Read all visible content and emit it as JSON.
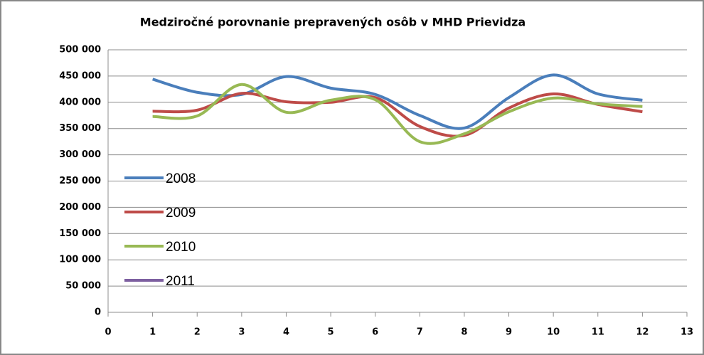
{
  "chart_data": {
    "type": "line",
    "title": "Medziročné porovnanie prepravených osôb v MHD Prievidza",
    "x": [
      1,
      2,
      3,
      4,
      5,
      6,
      7,
      8,
      9,
      10,
      11,
      12
    ],
    "series": [
      {
        "name": "2008",
        "color": "#4a7ebb",
        "values": [
          444000,
          419000,
          415000,
          449000,
          427000,
          415000,
          375000,
          351000,
          409000,
          452000,
          416000,
          404000
        ]
      },
      {
        "name": "2009",
        "color": "#be4b48",
        "values": [
          383000,
          385000,
          417000,
          401000,
          400000,
          409000,
          354000,
          337000,
          389000,
          416000,
          396000,
          382000
        ]
      },
      {
        "name": "2010",
        "color": "#98b954",
        "values": [
          373000,
          374000,
          434000,
          381000,
          404000,
          405000,
          325000,
          340000,
          382000,
          408000,
          397000,
          392000
        ]
      },
      {
        "name": "2011",
        "color": "#7d5fa0",
        "values": [
          null,
          null,
          null,
          null,
          null,
          null,
          null,
          null,
          null,
          null,
          null,
          null
        ]
      }
    ],
    "xlim": [
      0,
      13
    ],
    "xticks": [
      0,
      1,
      2,
      3,
      4,
      5,
      6,
      7,
      8,
      9,
      10,
      11,
      12,
      13
    ],
    "ylim": [
      0,
      500000
    ],
    "yticks": [
      {
        "value": 0,
        "label": "0"
      },
      {
        "value": 50000,
        "label": "50 000"
      },
      {
        "value": 100000,
        "label": "100 000"
      },
      {
        "value": 150000,
        "label": "150 000"
      },
      {
        "value": 200000,
        "label": "200 000"
      },
      {
        "value": 250000,
        "label": "250 000"
      },
      {
        "value": 300000,
        "label": "300 000"
      },
      {
        "value": 350000,
        "label": "350 000"
      },
      {
        "value": 400000,
        "label": "400 000"
      },
      {
        "value": 450000,
        "label": "450 000"
      },
      {
        "value": 500000,
        "label": "500 000"
      }
    ],
    "grid": true,
    "smooth": true,
    "legend": "left"
  }
}
